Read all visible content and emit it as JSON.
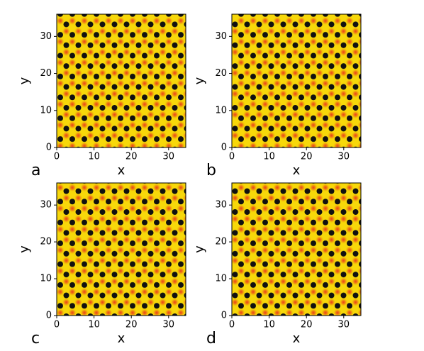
{
  "chart_data": [
    {
      "type": "image",
      "label": "a",
      "xlabel": "x",
      "ylabel": "y",
      "xlim": [
        0,
        34.6
      ],
      "ylim": [
        0,
        36
      ],
      "xticks": [
        0,
        10,
        20,
        30
      ],
      "yticks": [
        0,
        10,
        20,
        30
      ]
    },
    {
      "type": "image",
      "label": "b",
      "xlabel": "x",
      "ylabel": "y",
      "xlim": [
        0,
        34.6
      ],
      "ylim": [
        0,
        36
      ],
      "xticks": [
        0,
        10,
        20,
        30
      ],
      "yticks": [
        0,
        10,
        20,
        30
      ]
    },
    {
      "type": "image",
      "label": "c",
      "xlabel": "x",
      "ylabel": "y",
      "xlim": [
        0,
        34.6
      ],
      "ylim": [
        0,
        36
      ],
      "xticks": [
        0,
        10,
        20,
        30
      ],
      "yticks": [
        0,
        10,
        20,
        30
      ]
    },
    {
      "type": "image",
      "label": "d",
      "xlabel": "x",
      "ylabel": "y",
      "xlim": [
        0,
        34.6
      ],
      "ylim": [
        0,
        36
      ],
      "xticks": [
        0,
        10,
        20,
        30
      ],
      "yticks": [
        0,
        10,
        20,
        30
      ]
    }
  ]
}
